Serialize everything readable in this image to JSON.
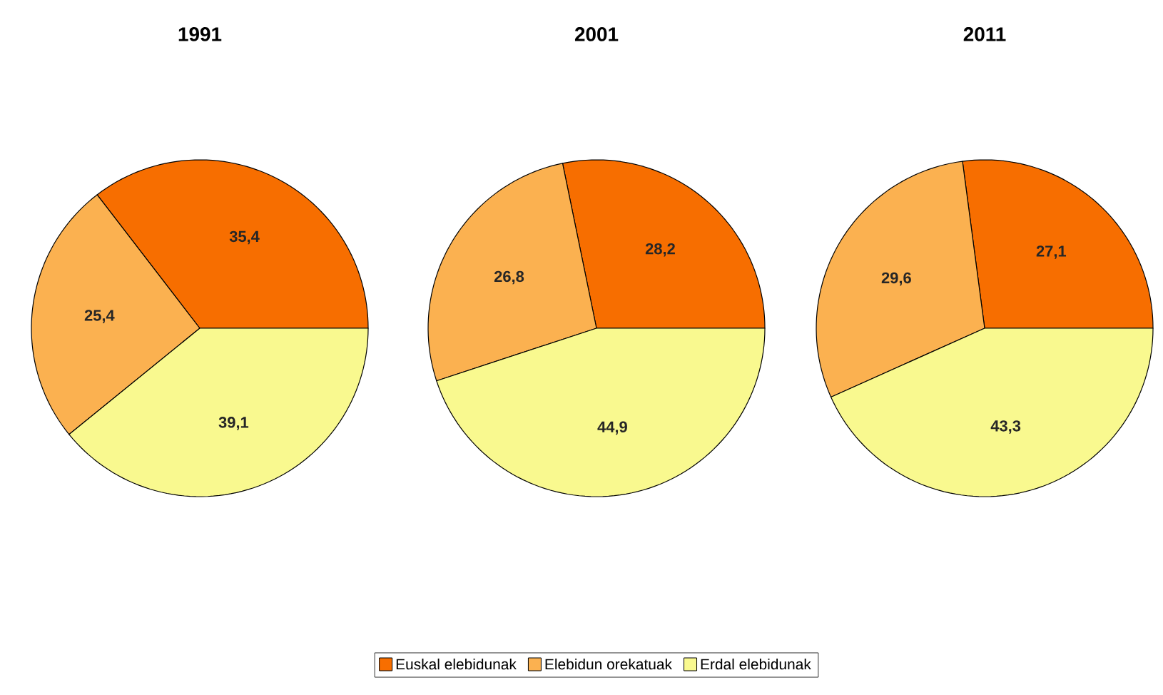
{
  "chart_data": [
    {
      "type": "pie",
      "title": "1991",
      "categories": [
        null,
        null,
        null
      ],
      "values": [
        35.4,
        25.4,
        39.1
      ],
      "value_labels": [
        "35,4",
        "25,4",
        "39,1"
      ],
      "colors": [
        "#f76e00",
        "#fbb150",
        "#f9f98f"
      ]
    },
    {
      "type": "pie",
      "title": "2001",
      "categories": [
        "Euskal elebidunak",
        "Elebidun orekatuak",
        "Erdal elebidunak"
      ],
      "values": [
        28.2,
        26.8,
        44.9
      ],
      "value_labels": [
        "28,2",
        "26,8",
        "44,9"
      ],
      "colors": [
        "#f76e00",
        "#fbb150",
        "#f9f98f"
      ],
      "legend": "bottom"
    },
    {
      "type": "pie",
      "title": "2011",
      "categories": [
        null,
        null,
        null
      ],
      "values": [
        27.1,
        29.6,
        43.3
      ],
      "value_labels": [
        "27,1",
        "29,6",
        "43,3"
      ],
      "colors": [
        "#f76e00",
        "#fbb150",
        "#f9f98f"
      ]
    }
  ]
}
